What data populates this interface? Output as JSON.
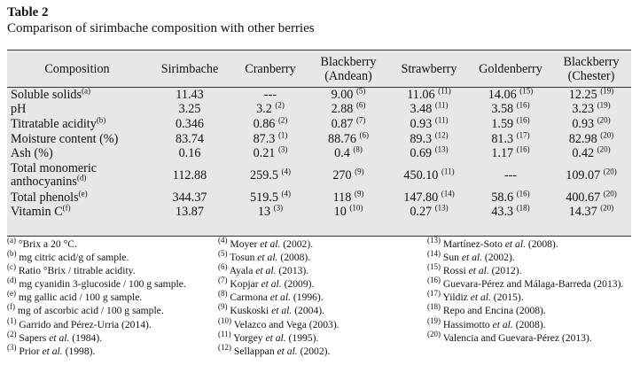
{
  "table_label": "Table 2",
  "caption": "Comparison of sirimbache composition with other berries",
  "columns": [
    {
      "line1": "Composition",
      "line2": ""
    },
    {
      "line1": "Sirimbache",
      "line2": ""
    },
    {
      "line1": "Cranberry",
      "line2": ""
    },
    {
      "line1": "Blackberry",
      "line2": "(Andean)"
    },
    {
      "line1": "Strawberry",
      "line2": ""
    },
    {
      "line1": "Goldenberry",
      "line2": ""
    },
    {
      "line1": "Blackberry",
      "line2": "(Chester)"
    }
  ],
  "rows": [
    {
      "label": "Soluble solids",
      "note": "(a)",
      "cells": [
        {
          "v": "11.43",
          "r": ""
        },
        {
          "v": "---",
          "r": ""
        },
        {
          "v": "9.00",
          "r": "(5)"
        },
        {
          "v": "11.06",
          "r": "(11)"
        },
        {
          "v": "14.06",
          "r": "(15)"
        },
        {
          "v": "12.25",
          "r": "(19)"
        }
      ]
    },
    {
      "label": "pH",
      "note": "",
      "cells": [
        {
          "v": "3.25",
          "r": ""
        },
        {
          "v": "3.2",
          "r": "(2)"
        },
        {
          "v": "2.88",
          "r": "(6)"
        },
        {
          "v": "3.48",
          "r": "(11)"
        },
        {
          "v": "3.58",
          "r": "(16)"
        },
        {
          "v": "3.23",
          "r": "(19)"
        }
      ]
    },
    {
      "label": "Titratable acidity",
      "note": "(b)",
      "cells": [
        {
          "v": "0.346",
          "r": ""
        },
        {
          "v": "0.86",
          "r": "(2)"
        },
        {
          "v": "0.87",
          "r": "(7)"
        },
        {
          "v": "0.93",
          "r": "(11)"
        },
        {
          "v": "1.59",
          "r": "(16)"
        },
        {
          "v": "0.93",
          "r": "(20)"
        }
      ]
    },
    {
      "label": "Moisture content (%)",
      "note": "",
      "cells": [
        {
          "v": "83.74",
          "r": ""
        },
        {
          "v": "87.3",
          "r": "(1)"
        },
        {
          "v": "88.76",
          "r": "(6)"
        },
        {
          "v": "89.3",
          "r": "(12)"
        },
        {
          "v": "81.3",
          "r": "(17)"
        },
        {
          "v": "82.98",
          "r": "(20)"
        }
      ]
    },
    {
      "label": "Ash (%)",
      "note": "",
      "cells": [
        {
          "v": "0.16",
          "r": ""
        },
        {
          "v": "0.21",
          "r": "(3)"
        },
        {
          "v": "0.4",
          "r": "(8)"
        },
        {
          "v": "0.69",
          "r": "(13)"
        },
        {
          "v": "1.17",
          "r": "(16)"
        },
        {
          "v": "0.42",
          "r": "(20)"
        }
      ]
    },
    {
      "label": "Total monomeric anthocyanins",
      "note": "(d)",
      "cells": [
        {
          "v": "112.88",
          "r": ""
        },
        {
          "v": "259.5",
          "r": "(4)"
        },
        {
          "v": "270",
          "r": "(9)"
        },
        {
          "v": "450.10",
          "r": "(11)"
        },
        {
          "v": "---",
          "r": ""
        },
        {
          "v": "109.07",
          "r": "(20)"
        }
      ]
    },
    {
      "label": "Total phenols",
      "note": "(e)",
      "cells": [
        {
          "v": "344.37",
          "r": ""
        },
        {
          "v": "519.5",
          "r": "(4)"
        },
        {
          "v": "118",
          "r": "(9)"
        },
        {
          "v": "147.80",
          "r": "(14)"
        },
        {
          "v": "58.6",
          "r": "(16)"
        },
        {
          "v": "400.67",
          "r": "(20)"
        }
      ]
    },
    {
      "label": "Vitamin C",
      "note": "(f)",
      "cells": [
        {
          "v": "13.87",
          "r": ""
        },
        {
          "v": "13",
          "r": "(3)"
        },
        {
          "v": "10",
          "r": "(10)"
        },
        {
          "v": "0.27",
          "r": "(13)"
        },
        {
          "v": "43.3",
          "r": "(18)"
        },
        {
          "v": "14.37",
          "r": "(20)"
        }
      ]
    }
  ],
  "footnotes": {
    "col1": [
      {
        "mark": "(a)",
        "parts": [
          {
            "t": " °Brix a 20 °C."
          }
        ]
      },
      {
        "mark": "(b)",
        "parts": [
          {
            "t": " mg citric acid/g of sample."
          }
        ]
      },
      {
        "mark": "(c)",
        "parts": [
          {
            "t": " Ratio °Brix / titrable acidity."
          }
        ]
      },
      {
        "mark": "(d)",
        "parts": [
          {
            "t": " mg cyanidin 3-glucoside / 100 g sample."
          }
        ]
      },
      {
        "mark": "(e)",
        "parts": [
          {
            "t": " mg gallic acid / 100 g sample."
          }
        ]
      },
      {
        "mark": "(f)",
        "parts": [
          {
            "t": " mg of ascorbic acid / 100 g sample."
          }
        ]
      },
      {
        "mark": "(1)",
        "parts": [
          {
            "t": " Garrido and Pérez-Urria (2014)."
          }
        ]
      },
      {
        "mark": "(2)",
        "parts": [
          {
            "t": " Sapers "
          },
          {
            "t": "et al.",
            "i": true
          },
          {
            "t": " (1984)."
          }
        ]
      },
      {
        "mark": "(3)",
        "parts": [
          {
            "t": " Prior "
          },
          {
            "t": "et al.",
            "i": true
          },
          {
            "t": " (1998)."
          }
        ]
      }
    ],
    "col2": [
      {
        "mark": "(4)",
        "parts": [
          {
            "t": " Moyer "
          },
          {
            "t": "et al.",
            "i": true
          },
          {
            "t": " (2002)."
          }
        ]
      },
      {
        "mark": "(5)",
        "parts": [
          {
            "t": " Tosun "
          },
          {
            "t": "et al.",
            "i": true
          },
          {
            "t": " (2008)."
          }
        ]
      },
      {
        "mark": "(6)",
        "parts": [
          {
            "t": " Ayala "
          },
          {
            "t": "et al.",
            "i": true
          },
          {
            "t": " (2013)."
          }
        ]
      },
      {
        "mark": "(7)",
        "parts": [
          {
            "t": " Kopjar "
          },
          {
            "t": "et al.",
            "i": true
          },
          {
            "t": " (2009)."
          }
        ]
      },
      {
        "mark": "(8)",
        "parts": [
          {
            "t": " Carmona "
          },
          {
            "t": "et al.",
            "i": true
          },
          {
            "t": " (1996)."
          }
        ]
      },
      {
        "mark": "(9)",
        "parts": [
          {
            "t": " Kuskoski "
          },
          {
            "t": "et al.",
            "i": true
          },
          {
            "t": " (2004)."
          }
        ]
      },
      {
        "mark": "(10)",
        "parts": [
          {
            "t": " Velazco and Vega (2003)."
          }
        ]
      },
      {
        "mark": "(11)",
        "parts": [
          {
            "t": " Yorgey "
          },
          {
            "t": "et al.",
            "i": true
          },
          {
            "t": " (1995)."
          }
        ]
      },
      {
        "mark": "(12)",
        "parts": [
          {
            "t": " Sellappan "
          },
          {
            "t": "et al.",
            "i": true
          },
          {
            "t": " (2002)."
          }
        ]
      }
    ],
    "col3": [
      {
        "mark": "(13)",
        "parts": [
          {
            "t": " Martínez-Soto "
          },
          {
            "t": "et al.",
            "i": true
          },
          {
            "t": " (2008)."
          }
        ]
      },
      {
        "mark": "(14)",
        "parts": [
          {
            "t": " Sun "
          },
          {
            "t": "et al.",
            "i": true
          },
          {
            "t": " (2002)."
          }
        ]
      },
      {
        "mark": "(15)",
        "parts": [
          {
            "t": " Rossi "
          },
          {
            "t": "et al.",
            "i": true
          },
          {
            "t": " (2012)."
          }
        ]
      },
      {
        "mark": "(16)",
        "parts": [
          {
            "t": " Guevara-Pérez and Málaga-Barreda (2013)."
          }
        ]
      },
      {
        "mark": "(17)",
        "parts": [
          {
            "t": " Yildiz "
          },
          {
            "t": "et al.",
            "i": true
          },
          {
            "t": " (2015)."
          }
        ]
      },
      {
        "mark": "(18)",
        "parts": [
          {
            "t": " Repo and Encina (2008)."
          }
        ]
      },
      {
        "mark": "(19)",
        "parts": [
          {
            "t": " Hassimotto "
          },
          {
            "t": "et al.",
            "i": true
          },
          {
            "t": " (2008)."
          }
        ]
      },
      {
        "mark": "(20)",
        "parts": [
          {
            "t": " Valencia and Guevara-Pérez (2013)."
          }
        ]
      }
    ]
  }
}
